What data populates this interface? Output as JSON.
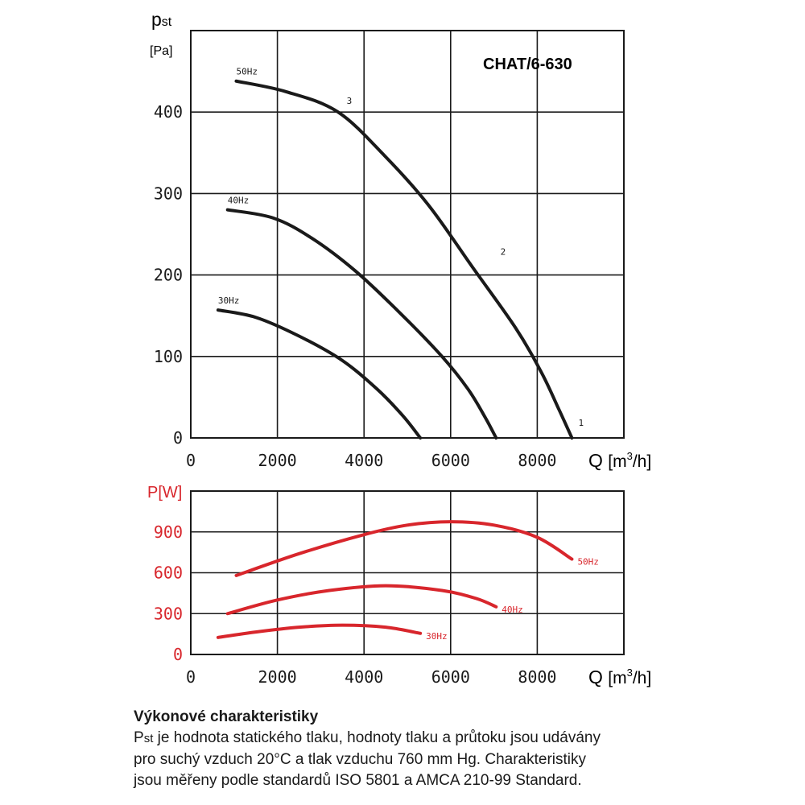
{
  "chart_data": [
    {
      "type": "line",
      "title": "CHAT/6-630",
      "ylabel_symbol": "p",
      "ylabel_sub": "st",
      "yunit": "[Pa]",
      "xlabel": "Q",
      "xunit_pre": "[m",
      "xunit_sup": "3",
      "xunit_post": "/h]",
      "xlim": [
        0,
        10000
      ],
      "ylim": [
        0,
        500
      ],
      "xticks": [
        "0",
        "2000",
        "4000",
        "6000",
        "8000"
      ],
      "xtick_values": [
        0,
        2000,
        4000,
        6000,
        8000
      ],
      "yticks": [
        "0",
        "100",
        "200",
        "300",
        "400"
      ],
      "ytick_values": [
        0,
        100,
        200,
        300,
        400
      ],
      "grid": true,
      "color": "#1a1a1a",
      "series": [
        {
          "name": "50Hz",
          "x": [
            1050,
            2200,
            3400,
            4500,
            5500,
            6500,
            7500,
            8100,
            8500,
            8800
          ],
          "y": [
            438,
            425,
            400,
            345,
            285,
            210,
            135,
            80,
            35,
            0
          ]
        },
        {
          "name": "40Hz",
          "x": [
            850,
            1900,
            2800,
            3800,
            4800,
            5800,
            6400,
            6800,
            7050
          ],
          "y": [
            280,
            270,
            245,
            205,
            155,
            100,
            60,
            25,
            0
          ]
        },
        {
          "name": "30Hz",
          "x": [
            630,
            1500,
            2500,
            3500,
            4300,
            4900,
            5300
          ],
          "y": [
            157,
            148,
            125,
            95,
            60,
            27,
            0
          ]
        }
      ],
      "point_labels": [
        {
          "text": "3",
          "x": 3600,
          "y": 410
        },
        {
          "text": "2",
          "x": 7150,
          "y": 225
        },
        {
          "text": "1",
          "x": 8950,
          "y": 15
        }
      ]
    },
    {
      "type": "line",
      "ylabel": "P[W]",
      "xlabel": "Q",
      "xunit_pre": "[m",
      "xunit_sup": "3",
      "xunit_post": "/h]",
      "xlim": [
        0,
        10000
      ],
      "ylim": [
        0,
        1200
      ],
      "xticks": [
        "0",
        "2000",
        "4000",
        "6000",
        "8000"
      ],
      "xtick_values": [
        0,
        2000,
        4000,
        6000,
        8000
      ],
      "yticks": [
        "0",
        "300",
        "600",
        "900"
      ],
      "ytick_values": [
        0,
        300,
        600,
        900
      ],
      "grid": true,
      "color": "#d8262c",
      "series": [
        {
          "name": "50Hz",
          "x": [
            1050,
            2500,
            4000,
            5000,
            6000,
            7000,
            8000,
            8800
          ],
          "y": [
            580,
            740,
            880,
            950,
            975,
            950,
            860,
            700
          ]
        },
        {
          "name": "40Hz",
          "x": [
            850,
            2000,
            3200,
            4500,
            5800,
            6600,
            7050
          ],
          "y": [
            300,
            400,
            470,
            505,
            470,
            410,
            350
          ]
        },
        {
          "name": "30Hz",
          "x": [
            630,
            1500,
            2500,
            3500,
            4500,
            5300
          ],
          "y": [
            125,
            165,
            200,
            215,
            200,
            155
          ]
        }
      ]
    }
  ],
  "caption": {
    "title": "Výkonové charakteristiky",
    "line1_symbol": "P",
    "line1_sub": "st",
    "line1_rest": " je hodnota statického tlaku, hodnoty tlaku a průtoku jsou udávány",
    "line2": "pro suchý vzduch 20°C a tlak vzduchu 760 mm Hg. Charakteristiky",
    "line3": "jsou měřeny podle standardů ISO 5801 a AMCA 210-99 Standard."
  }
}
